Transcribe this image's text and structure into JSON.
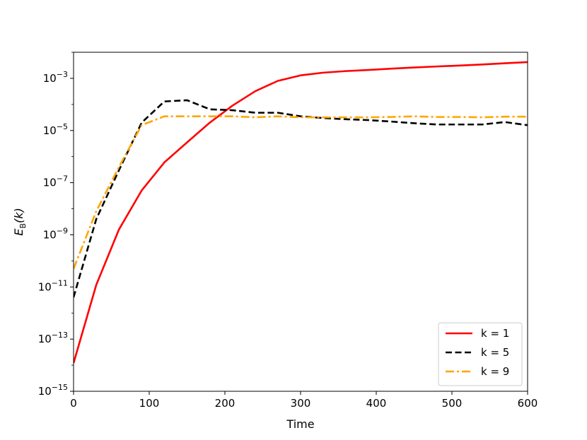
{
  "chart_data": {
    "type": "line",
    "title": "",
    "xlabel": "Time",
    "ylabel": {
      "base": "E",
      "sub": "B",
      "arg": "(k)"
    },
    "xlim": [
      0,
      600
    ],
    "ylim": [
      1e-15,
      0.01
    ],
    "yscale": "log",
    "grid": false,
    "legend_position": "lower-right",
    "x_ticks": [
      {
        "value": 0,
        "label": "0"
      },
      {
        "value": 100,
        "label": "100"
      },
      {
        "value": 200,
        "label": "200"
      },
      {
        "value": 300,
        "label": "300"
      },
      {
        "value": 400,
        "label": "400"
      },
      {
        "value": 500,
        "label": "500"
      },
      {
        "value": 600,
        "label": "600"
      }
    ],
    "y_ticks": [
      {
        "value": 1e-15,
        "base": "10",
        "exp": "−15"
      },
      {
        "value": 1e-13,
        "base": "10",
        "exp": "−13"
      },
      {
        "value": 1e-11,
        "base": "10",
        "exp": "−11"
      },
      {
        "value": 1e-09,
        "base": "10",
        "exp": "−9"
      },
      {
        "value": 1e-07,
        "base": "10",
        "exp": "−7"
      },
      {
        "value": 1e-05,
        "base": "10",
        "exp": "−5"
      },
      {
        "value": 0.001,
        "base": "10",
        "exp": "−3"
      }
    ],
    "series": [
      {
        "name": "k = 1",
        "color": "#ff0000",
        "dash": "solid",
        "x": [
          0,
          30,
          60,
          90,
          120,
          150,
          180,
          210,
          240,
          270,
          300,
          330,
          360,
          390,
          420,
          450,
          480,
          510,
          540,
          570,
          600
        ],
        "y": [
          1.2e-14,
          1.2e-11,
          1.6e-09,
          5e-08,
          6e-07,
          3.5e-06,
          2e-05,
          9e-05,
          0.00032,
          0.0008,
          0.0013,
          0.00165,
          0.0019,
          0.0021,
          0.00235,
          0.0026,
          0.00285,
          0.0031,
          0.0034,
          0.0038,
          0.0042
        ]
      },
      {
        "name": "k = 5",
        "color": "#000000",
        "dash": "dashed",
        "x": [
          0,
          30,
          60,
          90,
          120,
          150,
          180,
          210,
          240,
          270,
          300,
          330,
          360,
          390,
          420,
          450,
          480,
          510,
          540,
          570,
          600
        ],
        "y": [
          4e-12,
          4e-09,
          3e-07,
          2e-05,
          0.00013,
          0.000145,
          6.5e-05,
          6e-05,
          4.8e-05,
          4.8e-05,
          3.5e-05,
          3e-05,
          2.7e-05,
          2.5e-05,
          2.2e-05,
          1.9e-05,
          1.7e-05,
          1.7e-05,
          1.7e-05,
          2.1e-05,
          1.6e-05
        ]
      },
      {
        "name": "k = 9",
        "color": "#ffa500",
        "dash": "dashdot",
        "x": [
          0,
          30,
          60,
          90,
          120,
          150,
          180,
          210,
          240,
          270,
          300,
          330,
          360,
          390,
          420,
          450,
          480,
          510,
          540,
          570,
          600
        ],
        "y": [
          5e-11,
          8e-09,
          4e-07,
          1.6e-05,
          3.5e-05,
          3.5e-05,
          3.5e-05,
          3.5e-05,
          3.2e-05,
          3.5e-05,
          3.2e-05,
          3.2e-05,
          3.2e-05,
          3.2e-05,
          3.3e-05,
          3.5e-05,
          3.3e-05,
          3.3e-05,
          3.2e-05,
          3.4e-05,
          3.4e-05
        ]
      }
    ]
  }
}
